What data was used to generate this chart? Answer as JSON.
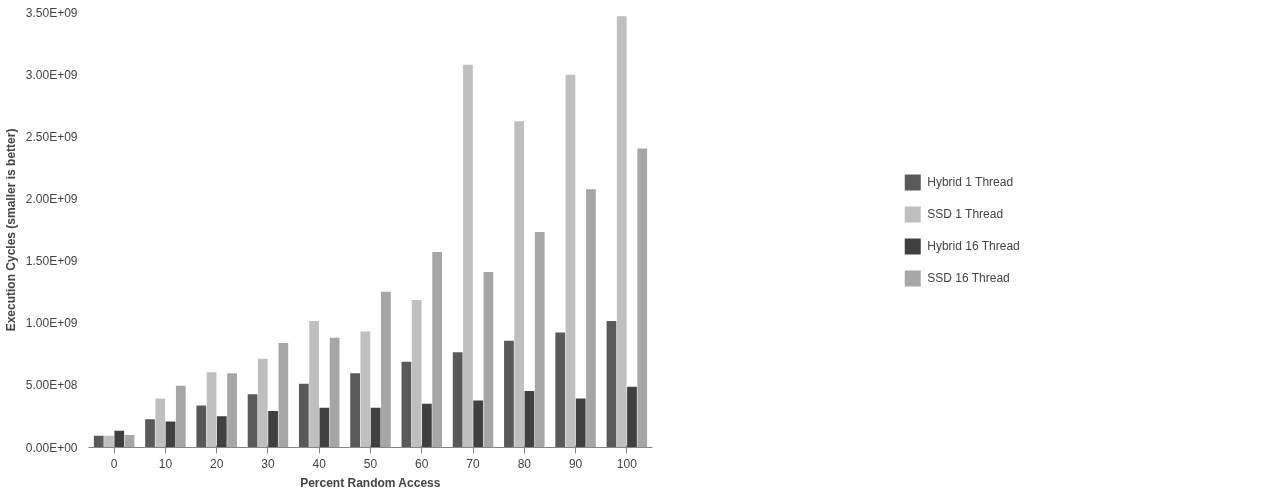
{
  "chart_data": {
    "type": "bar",
    "xlabel": "Percent Random Access",
    "ylabel": "Execution Cycles (smaller is better)",
    "categories": [
      "0",
      "10",
      "20",
      "30",
      "40",
      "50",
      "60",
      "70",
      "80",
      "90",
      "100"
    ],
    "series": [
      {
        "name": "Hybrid 1 Thread",
        "color": "#595959",
        "values": [
          95000000.0,
          227000000.0,
          337000000.0,
          429000000.0,
          513000000.0,
          597000000.0,
          690000000.0,
          766000000.0,
          858000000.0,
          925000000.0,
          1018000000.0
        ]
      },
      {
        "name": "SSD 1 Thread",
        "color": "#bfbfbf",
        "values": [
          95000000.0,
          395000000.0,
          606000000.0,
          715000000.0,
          1018000000.0,
          934000000.0,
          1186000000.0,
          3080000000.0,
          2625000000.0,
          3000000000.0,
          3470000000.0
        ]
      },
      {
        "name": "Hybrid 16 Thread",
        "color": "#404040",
        "values": [
          135000000.0,
          210000000.0,
          252000000.0,
          294000000.0,
          320000000.0,
          320000000.0,
          353000000.0,
          379000000.0,
          454000000.0,
          395000000.0,
          488000000.0
        ]
      },
      {
        "name": "SSD 16 Thread",
        "color": "#a6a6a6",
        "values": [
          100000000.0,
          496000000.0,
          597000000.0,
          841000000.0,
          883000000.0,
          1254000000.0,
          1573000000.0,
          1413000000.0,
          1733000000.0,
          2078000000.0,
          2406000000.0
        ]
      }
    ],
    "ylim": [
      0,
      3500000000.0
    ],
    "yticks": [
      {
        "value": 0,
        "label": "0.00E+00"
      },
      {
        "value": 500000000.0,
        "label": "5.00E+08"
      },
      {
        "value": 1000000000.0,
        "label": "1.00E+09"
      },
      {
        "value": 1500000000.0,
        "label": "1.50E+09"
      },
      {
        "value": 2000000000.0,
        "label": "2.00E+09"
      },
      {
        "value": 2500000000.0,
        "label": "2.50E+09"
      },
      {
        "value": 3000000000.0,
        "label": "3.00E+09"
      },
      {
        "value": 3500000000.0,
        "label": "3.50E+09"
      }
    ],
    "grid": false,
    "legend": "right"
  }
}
